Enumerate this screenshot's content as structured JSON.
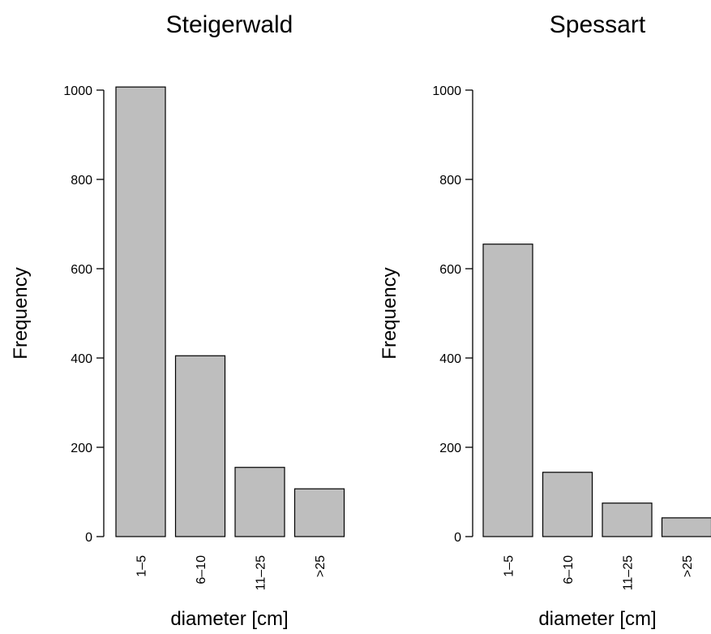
{
  "colors": {
    "bar_fill": "#bebebe",
    "bar_stroke": "#000000",
    "axis": "#000000",
    "background": "#ffffff"
  },
  "chart_data": [
    {
      "type": "bar",
      "title": "Steigerwald",
      "xlabel": "diameter [cm]",
      "ylabel": "Frequency",
      "categories": [
        "1–5",
        "6–10",
        "11–25",
        ">25"
      ],
      "values": [
        1007,
        405,
        155,
        107
      ],
      "ylim": [
        0,
        1000
      ],
      "yticks": [
        0,
        200,
        400,
        600,
        800,
        1000
      ],
      "grid": false,
      "legend": "none"
    },
    {
      "type": "bar",
      "title": "Spessart",
      "xlabel": "diameter [cm]",
      "ylabel": "Frequency",
      "categories": [
        "1–5",
        "6–10",
        "11–25",
        ">25"
      ],
      "values": [
        655,
        144,
        75,
        42
      ],
      "ylim": [
        0,
        1000
      ],
      "yticks": [
        0,
        200,
        400,
        600,
        800,
        1000
      ],
      "grid": false,
      "legend": "none"
    }
  ]
}
